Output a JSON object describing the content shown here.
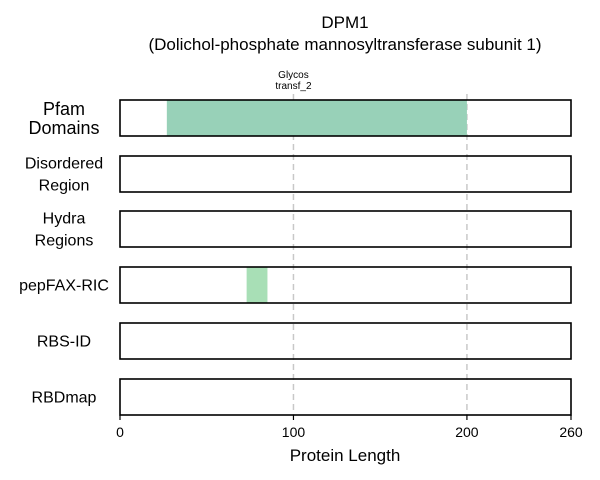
{
  "chart_data": {
    "type": "bar",
    "title": "DPM1",
    "subtitle": "(Dolichol-phosphate mannosyltransferase subunit 1)",
    "xlabel": "Protein Length",
    "xlim": [
      0,
      260
    ],
    "xticks": [
      0,
      100,
      200,
      260
    ],
    "gridlines_x": [
      100,
      200
    ],
    "grid": "vertical dashed",
    "tracks": [
      {
        "label_lines": [
          "Pfam",
          "Domains"
        ],
        "big": true,
        "segments": [
          {
            "start": 27,
            "end": 200,
            "color": "#98d1b8",
            "annotation": [
              "Glycos",
              "transf_2"
            ]
          }
        ]
      },
      {
        "label_lines": [
          "Disordered",
          "Region"
        ],
        "big": false,
        "segments": []
      },
      {
        "label_lines": [
          "Hydra",
          "Regions"
        ],
        "big": false,
        "segments": []
      },
      {
        "label_lines": [
          "pepFAX-RIC"
        ],
        "big": false,
        "segments": [
          {
            "start": 73,
            "end": 85,
            "color": "#a8dfb6",
            "annotation": []
          }
        ]
      },
      {
        "label_lines": [
          "RBS-ID"
        ],
        "big": false,
        "segments": []
      },
      {
        "label_lines": [
          "RBDmap"
        ],
        "big": false,
        "segments": []
      }
    ]
  }
}
